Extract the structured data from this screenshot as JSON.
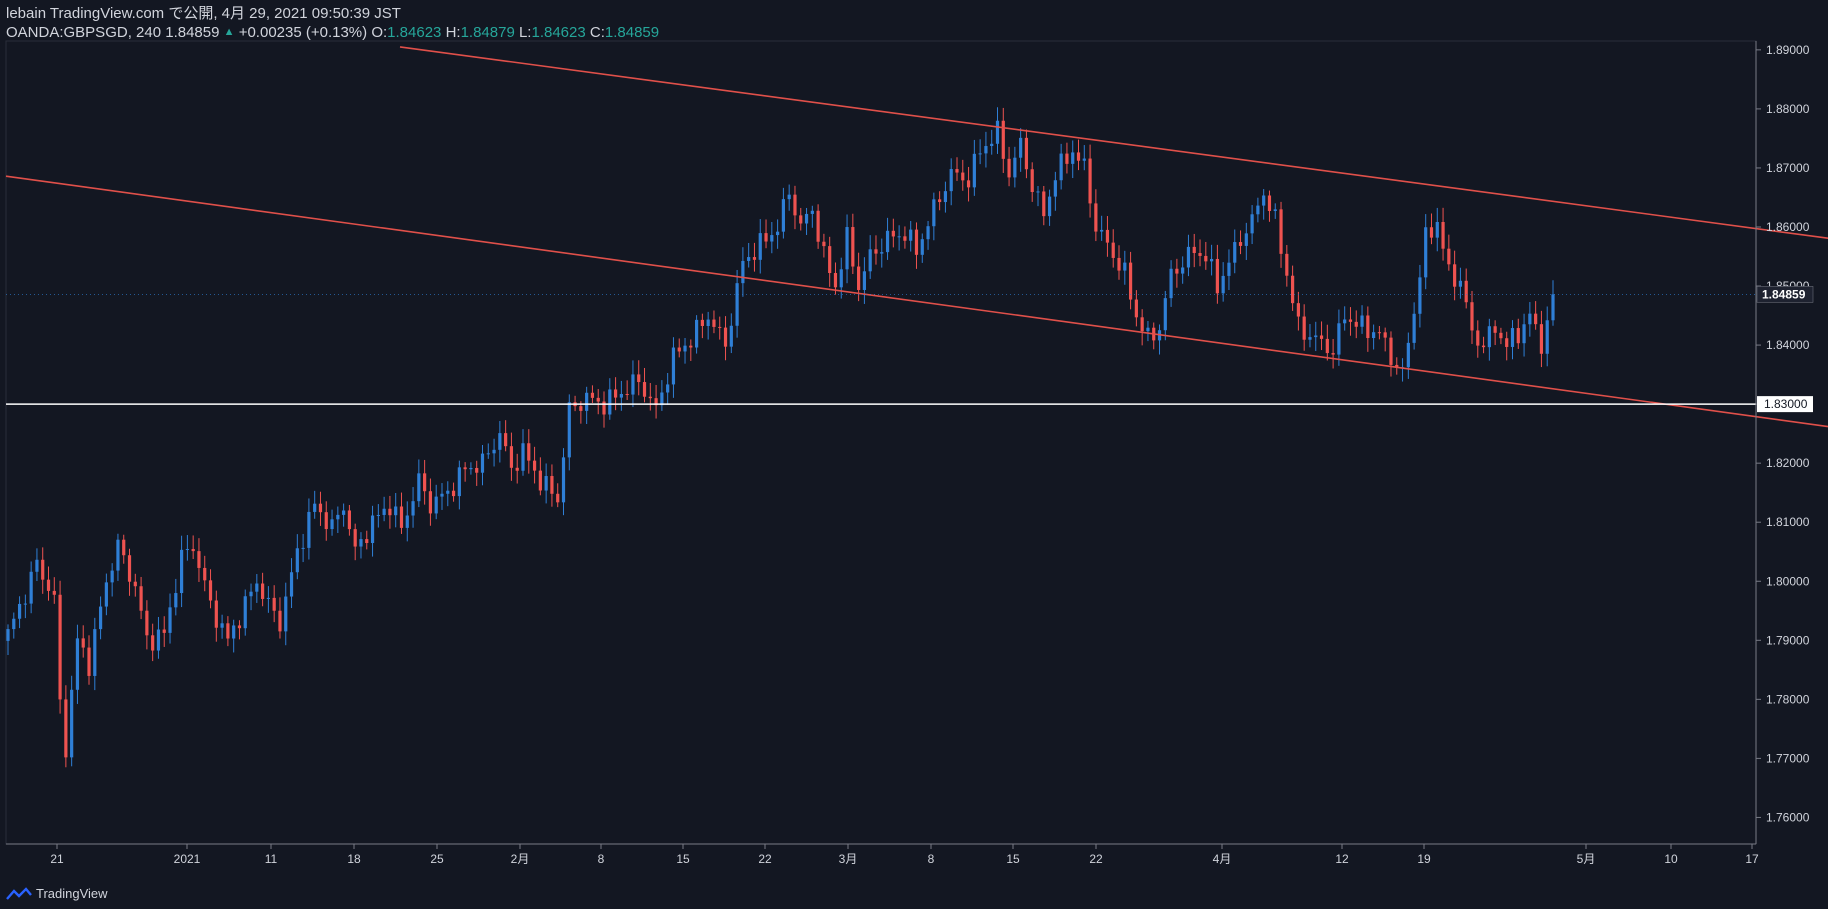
{
  "header": {
    "title": "lebain TradingView.com で公開, 4月 29, 2021 09:50:39 JST",
    "symbol": "OANDA:GBPSGD, 240",
    "last": "1.84859",
    "change": "+0.00235 (+0.13%)",
    "o_label": "O:",
    "o_value": "1.84623",
    "h_label": "H:",
    "h_value": "1.84879",
    "l_label": "L:",
    "l_value": "1.84623",
    "c_label": "C:",
    "c_value": "1.84859"
  },
  "footer": {
    "brand": "TradingView"
  },
  "colors": {
    "background": "#131722",
    "up": "#2f7fd6",
    "down": "#ef5350",
    "channel": "#e0504a",
    "support": "#ffffff",
    "grid": "#1e222d"
  },
  "chart_data": {
    "type": "candlestick",
    "y_ticks": [
      "1.89000",
      "1.88000",
      "1.87000",
      "1.86000",
      "1.85000",
      "1.84000",
      "1.83000",
      "1.82000",
      "1.81000",
      "1.80000",
      "1.79000",
      "1.78000",
      "1.77000",
      "1.76000"
    ],
    "ylim": [
      1.7555,
      1.8915
    ],
    "x_ticks": [
      "21",
      "2021",
      "11",
      "18",
      "25",
      "2月",
      "8",
      "15",
      "22",
      "3月",
      "8",
      "15",
      "22",
      "4月",
      "12",
      "19",
      "5月",
      "10",
      "17"
    ],
    "last_price_label": "1.84859",
    "support_label": "1.83000",
    "support_level": 1.83,
    "swing_points": [
      [
        0,
        1.791
      ],
      [
        3,
        1.798
      ],
      [
        5,
        1.803
      ],
      [
        8,
        1.797
      ],
      [
        9,
        1.779
      ],
      [
        10,
        1.772
      ],
      [
        12,
        1.79
      ],
      [
        14,
        1.786
      ],
      [
        17,
        1.8
      ],
      [
        19,
        1.806
      ],
      [
        22,
        1.799
      ],
      [
        24,
        1.79
      ],
      [
        27,
        1.791
      ],
      [
        30,
        1.804
      ],
      [
        32,
        1.806
      ],
      [
        35,
        1.796
      ],
      [
        38,
        1.79
      ],
      [
        40,
        1.794
      ],
      [
        43,
        1.8
      ],
      [
        45,
        1.796
      ],
      [
        47,
        1.793
      ],
      [
        50,
        1.805
      ],
      [
        53,
        1.813
      ],
      [
        56,
        1.809
      ],
      [
        58,
        1.813
      ],
      [
        60,
        1.805
      ],
      [
        63,
        1.81
      ],
      [
        66,
        1.813
      ],
      [
        68,
        1.809
      ],
      [
        71,
        1.817
      ],
      [
        73,
        1.813
      ],
      [
        76,
        1.815
      ],
      [
        79,
        1.819
      ],
      [
        82,
        1.82
      ],
      [
        85,
        1.825
      ],
      [
        87,
        1.819
      ],
      [
        89,
        1.822
      ],
      [
        92,
        1.817
      ],
      [
        95,
        1.814
      ],
      [
        97,
        1.829
      ],
      [
        100,
        1.831
      ],
      [
        103,
        1.83
      ],
      [
        106,
        1.832
      ],
      [
        109,
        1.834
      ],
      [
        112,
        1.829
      ],
      [
        115,
        1.838
      ],
      [
        118,
        1.841
      ],
      [
        121,
        1.845
      ],
      [
        124,
        1.84
      ],
      [
        127,
        1.854
      ],
      [
        130,
        1.857
      ],
      [
        133,
        1.86
      ],
      [
        135,
        1.866
      ],
      [
        137,
        1.86
      ],
      [
        139,
        1.863
      ],
      [
        141,
        1.855
      ],
      [
        143,
        1.85
      ],
      [
        145,
        1.858
      ],
      [
        147,
        1.85
      ],
      [
        149,
        1.855
      ],
      [
        152,
        1.858
      ],
      [
        155,
        1.859
      ],
      [
        157,
        1.856
      ],
      [
        160,
        1.863
      ],
      [
        163,
        1.869
      ],
      [
        166,
        1.868
      ],
      [
        168,
        1.873
      ],
      [
        171,
        1.876
      ],
      [
        173,
        1.869
      ],
      [
        175,
        1.874
      ],
      [
        177,
        1.867
      ],
      [
        179,
        1.862
      ],
      [
        181,
        1.869
      ],
      [
        184,
        1.873
      ],
      [
        186,
        1.87
      ],
      [
        188,
        1.86
      ],
      [
        190,
        1.857
      ],
      [
        193,
        1.852
      ],
      [
        195,
        1.845
      ],
      [
        197,
        1.841
      ],
      [
        199,
        1.843
      ],
      [
        201,
        1.852
      ],
      [
        203,
        1.854
      ],
      [
        205,
        1.856
      ],
      [
        207,
        1.855
      ],
      [
        209,
        1.85
      ],
      [
        211,
        1.854
      ],
      [
        213,
        1.858
      ],
      [
        215,
        1.861
      ],
      [
        217,
        1.866
      ],
      [
        219,
        1.861
      ],
      [
        221,
        1.852
      ],
      [
        223,
        1.843
      ],
      [
        226,
        1.841
      ],
      [
        229,
        1.839
      ],
      [
        231,
        1.845
      ],
      [
        234,
        1.843
      ],
      [
        237,
        1.842
      ],
      [
        239,
        1.838
      ],
      [
        241,
        1.835
      ],
      [
        243,
        1.846
      ],
      [
        245,
        1.858
      ],
      [
        247,
        1.861
      ],
      [
        249,
        1.852
      ],
      [
        251,
        1.851
      ],
      [
        253,
        1.842
      ],
      [
        255,
        1.84
      ],
      [
        257,
        1.843
      ],
      [
        259,
        1.84
      ],
      [
        261,
        1.842
      ],
      [
        263,
        1.845
      ],
      [
        265,
        1.84
      ],
      [
        267,
        1.8486
      ]
    ]
  }
}
